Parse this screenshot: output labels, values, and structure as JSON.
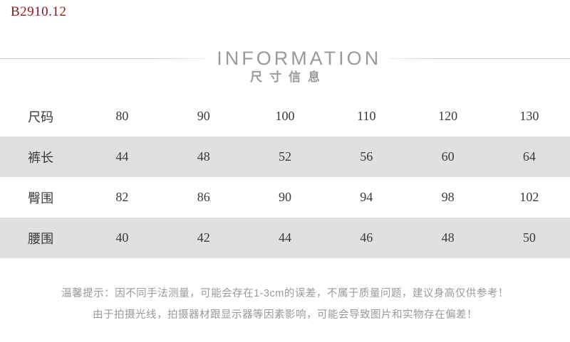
{
  "product_code": "B2910.12",
  "header": {
    "title": "INFORMATION",
    "subtitle": "尺寸信息"
  },
  "size_table": {
    "header_row": {
      "label": "尺码",
      "sizes": [
        "80",
        "90",
        "100",
        "110",
        "120",
        "130"
      ]
    },
    "rows": [
      {
        "label": "裤长",
        "values": [
          "44",
          "48",
          "52",
          "56",
          "60",
          "64"
        ]
      },
      {
        "label": "臀围",
        "values": [
          "82",
          "86",
          "90",
          "94",
          "98",
          "102"
        ]
      },
      {
        "label": "腰围",
        "values": [
          "40",
          "42",
          "44",
          "46",
          "48",
          "50"
        ]
      }
    ]
  },
  "tips": {
    "line1": "温馨提示：因不同手法测量，可能会存在1-3cm的误差，不属于质量问题，建议身高仅供参考！",
    "line2": "由于拍摄光线，拍摄器材跟显示器等因素影响，可能会导致图片和实物存在偏差！"
  },
  "colors": {
    "product_code": "#8b1616",
    "row_band": "#e0e0e0",
    "table_text": "#3a3a3a",
    "muted_text": "#9a9a9a",
    "rule_line": "#d0d0d0"
  }
}
